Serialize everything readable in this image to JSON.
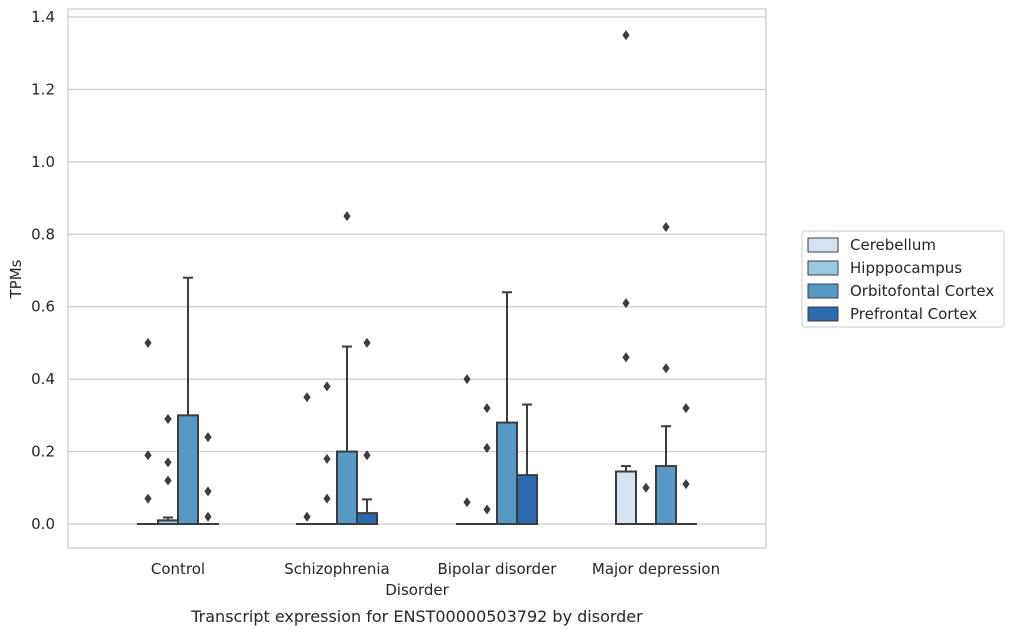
{
  "chart_data": {
    "type": "boxplot",
    "caption": "Transcript expression for ENST00000503792 by disorder",
    "xlabel": "Disorder",
    "ylabel": "TPMs",
    "ylim": [
      -0.065,
      1.42
    ],
    "yticks": [
      0.0,
      0.2,
      0.4,
      0.6,
      0.8,
      1.0,
      1.2,
      1.4
    ],
    "ytick_labels": [
      "0.0",
      "0.2",
      "0.4",
      "0.6",
      "0.8",
      "1.0",
      "1.2",
      "1.4"
    ],
    "grid": true,
    "legend_position": "right",
    "categories": [
      "Control",
      "Schizophrenia",
      "Bipolar disorder",
      "Major depression"
    ],
    "series": [
      {
        "name": "Cerebellum",
        "color": "#d3e3f2",
        "boxes": [
          {
            "q1": 0,
            "median": 0,
            "q3": 0,
            "whislo": 0,
            "whishi": 0,
            "fliers": [
              0.5,
              0.19,
              0.07
            ]
          },
          {
            "q1": 0,
            "median": 0,
            "q3": 0,
            "whislo": 0,
            "whishi": 0,
            "fliers": [
              0.35,
              0.02
            ]
          },
          {
            "q1": 0,
            "median": 0,
            "q3": 0,
            "whislo": 0,
            "whishi": 0,
            "fliers": [
              0.4,
              0.06
            ]
          },
          {
            "q1": 0,
            "median": 0,
            "q3": 0.145,
            "whislo": 0,
            "whishi": 0.16,
            "fliers": [
              1.35,
              0.61,
              0.46
            ]
          }
        ]
      },
      {
        "name": "Hipppocampus",
        "color": "#9ac8e0",
        "boxes": [
          {
            "q1": 0,
            "median": 0,
            "q3": 0.01,
            "whislo": 0,
            "whishi": 0.018,
            "fliers": [
              0.29,
              0.17,
              0.12
            ]
          },
          {
            "q1": 0,
            "median": 0,
            "q3": 0,
            "whislo": 0,
            "whishi": 0,
            "fliers": [
              0.38,
              0.18,
              0.07
            ]
          },
          {
            "q1": 0,
            "median": 0,
            "q3": 0,
            "whislo": 0,
            "whishi": 0,
            "fliers": [
              0.32,
              0.21,
              0.04
            ]
          },
          {
            "q1": 0,
            "median": 0,
            "q3": 0,
            "whislo": 0,
            "whishi": 0,
            "fliers": [
              0.1
            ]
          }
        ]
      },
      {
        "name": "Orbitofontal Cortex",
        "color": "#5799c6",
        "boxes": [
          {
            "q1": 0,
            "median": 0,
            "q3": 0.3,
            "whislo": 0,
            "whishi": 0.68,
            "fliers": []
          },
          {
            "q1": 0,
            "median": 0,
            "q3": 0.2,
            "whislo": 0,
            "whishi": 0.49,
            "fliers": [
              0.85
            ]
          },
          {
            "q1": 0,
            "median": 0,
            "q3": 0.28,
            "whislo": 0,
            "whishi": 0.64,
            "fliers": []
          },
          {
            "q1": 0,
            "median": 0,
            "q3": 0.16,
            "whislo": 0,
            "whishi": 0.27,
            "fliers": [
              0.82,
              0.43
            ]
          }
        ]
      },
      {
        "name": "Prefrontal Cortex",
        "color": "#2a6aad",
        "boxes": [
          {
            "q1": 0,
            "median": 0,
            "q3": 0,
            "whislo": 0,
            "whishi": 0,
            "fliers": [
              0.24,
              0.09,
              0.02
            ]
          },
          {
            "q1": 0,
            "median": 0,
            "q3": 0.03,
            "whislo": 0,
            "whishi": 0.068,
            "fliers": [
              0.5,
              0.19
            ]
          },
          {
            "q1": 0,
            "median": 0,
            "q3": 0.135,
            "whislo": 0,
            "whishi": 0.33,
            "fliers": []
          },
          {
            "q1": 0,
            "median": 0,
            "q3": 0,
            "whislo": 0,
            "whishi": 0,
            "fliers": [
              0.32,
              0.11
            ]
          }
        ]
      }
    ]
  }
}
